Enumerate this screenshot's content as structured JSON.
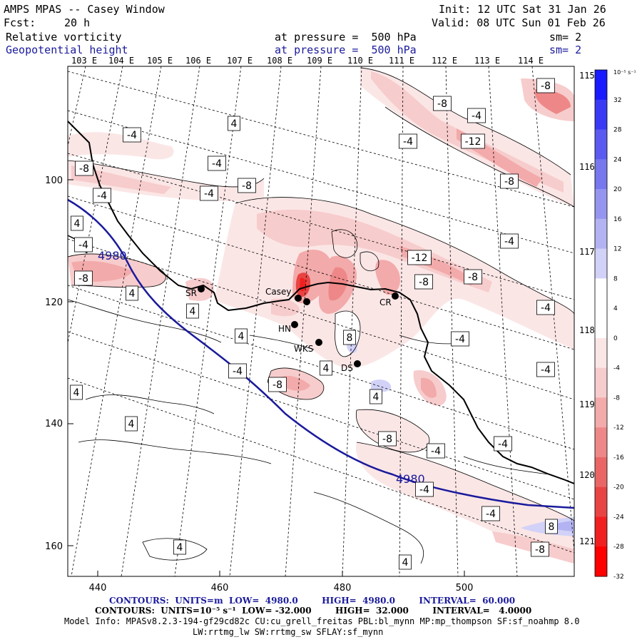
{
  "header": {
    "title": "AMPS MPAS -- Casey Window",
    "init": "Init: 12 UTC Sat 31 Jan 26",
    "fcst_label": "Fcst:",
    "fcst_value": "20 h",
    "valid": "Valid: 08 UTC Sun 01 Feb 26",
    "field1": "Relative vorticity",
    "field1_level": "at pressure =  500 hPa",
    "field1_sm": "sm= 2",
    "field2": "Geopotential height",
    "field2_level": "at pressure =  500 hPa",
    "field2_sm": "sm= 2"
  },
  "top_longitudes": [
    "103 E",
    "104 E",
    "105 E",
    "106 E",
    "107 E",
    "108 E",
    "109 E",
    "110 E",
    "111 E",
    "112 E",
    "113 E",
    "114 E"
  ],
  "right_longitudes": [
    "115 E",
    "116 E",
    "117 E",
    "118 E",
    "119 E",
    "120 E",
    "121 E"
  ],
  "y_ticks": [
    "100",
    "120",
    "140",
    "160"
  ],
  "x_ticks": [
    "440",
    "460",
    "480",
    "500"
  ],
  "stations": [
    "SR",
    "Casey",
    "HN",
    "WKS",
    "DS",
    "CR"
  ],
  "height_contour_labels": [
    "4980",
    "4980"
  ],
  "vorticity_labels": [
    "-4",
    "-8",
    "-12",
    "4",
    "8"
  ],
  "colorbar": {
    "unit": "10⁻⁵ s⁻¹",
    "labels": [
      "32",
      "28",
      "24",
      "20",
      "16",
      "12",
      "8",
      "4",
      "0",
      "-4",
      "-8",
      "-12",
      "-16",
      "-20",
      "-24",
      "-28",
      "-32"
    ],
    "colors": [
      "#1a1aff",
      "#3a3af5",
      "#5a5af0",
      "#7777ee",
      "#9595f0",
      "#b3b3f3",
      "#d2d2f8",
      "#ffffff",
      "#ffffff",
      "#fbe6e6",
      "#f7cccc",
      "#f3aaaa",
      "#ee8888",
      "#ea6666",
      "#e84444",
      "#f02020",
      "#ff0000"
    ]
  },
  "footer": {
    "contours1": "CONTOURS:  UNITS=m  LOW=  4980.0        HIGH=  4980.0        INTERVAL=  60.000",
    "contours2": "CONTOURS:  UNITS=10⁻⁵ s⁻¹  LOW= -32.000        HIGH=  32.000        INTERVAL=   4.0000",
    "model1": "Model Info: MPASv8.2.3-194-gf29cd82c CU:cu_grell_freitas PBL:bl_mynn MP:mp_thompson SF:sf_noahmp 8.0",
    "model2": "LW:rrtmg_lw SW:rrtmg_sw SFLAY:sf_mynn"
  }
}
